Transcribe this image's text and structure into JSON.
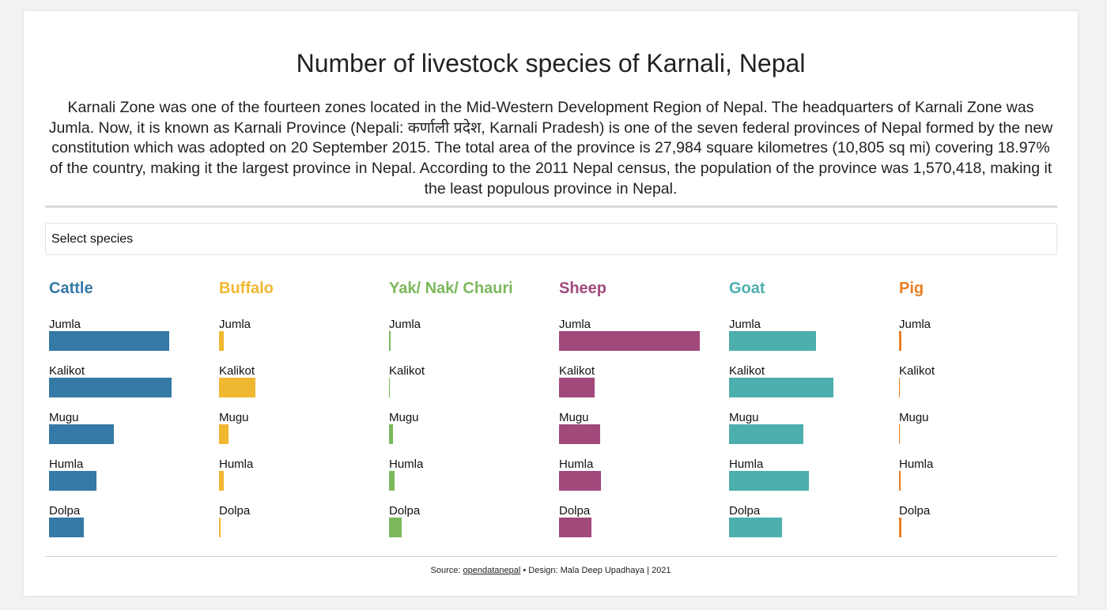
{
  "header": {
    "title": "Number of livestock species of Karnali, Nepal",
    "description": "Karnali Zone was one of the fourteen zones located in the Mid-Western Development Region of Nepal. The headquarters of Karnali Zone was Jumla. Now, it is known as Karnali Province (Nepali: कर्णाली प्रदेश, Karnali Pradesh) is one of the seven federal provinces of Nepal formed by the new constitution which was adopted on 20 September 2015. The total area of the province is 27,984 square kilometres (10,805 sq mi) covering 18.97% of the country, making it the largest province in Nepal. According to the 2011 Nepal census, the population of the province was 1,570,418, making it the least populous province in Nepal."
  },
  "filter": {
    "label": "Select species"
  },
  "chart_data": [
    {
      "type": "bar",
      "title": "Cattle",
      "color": "#3579a6",
      "categories": [
        "Jumla",
        "Kalikot",
        "Mugu",
        "Humla",
        "Dolpa"
      ],
      "values": [
        152,
        155,
        82,
        60,
        44
      ],
      "xlim": [
        0,
        180
      ]
    },
    {
      "type": "bar",
      "title": "Buffalo",
      "color": "#f0b731",
      "categories": [
        "Jumla",
        "Kalikot",
        "Mugu",
        "Humla",
        "Dolpa"
      ],
      "values": [
        6,
        46,
        12,
        6,
        2
      ],
      "xlim": [
        0,
        180
      ]
    },
    {
      "type": "bar",
      "title": "Yak/ Nak/ Chauri",
      "color": "#7cb85c",
      "categories": [
        "Jumla",
        "Kalikot",
        "Mugu",
        "Humla",
        "Dolpa"
      ],
      "values": [
        2,
        1,
        5,
        7,
        16
      ],
      "xlim": [
        0,
        180
      ]
    },
    {
      "type": "bar",
      "title": "Sheep",
      "color": "#a2497c",
      "categories": [
        "Jumla",
        "Kalikot",
        "Mugu",
        "Humla",
        "Dolpa"
      ],
      "values": [
        178,
        45,
        52,
        53,
        41
      ],
      "xlim": [
        0,
        180
      ]
    },
    {
      "type": "bar",
      "title": "Goat",
      "color": "#4cafae",
      "categories": [
        "Jumla",
        "Kalikot",
        "Mugu",
        "Humla",
        "Dolpa"
      ],
      "values": [
        110,
        132,
        94,
        101,
        67
      ],
      "xlim": [
        0,
        180
      ]
    },
    {
      "type": "bar",
      "title": "Pig",
      "color": "#ea7e24",
      "categories": [
        "Jumla",
        "Kalikot",
        "Mugu",
        "Humla",
        "Dolpa"
      ],
      "values": [
        3,
        1,
        1,
        2,
        3
      ],
      "xlim": [
        0,
        180
      ]
    }
  ],
  "footer": {
    "source_prefix": "Source: ",
    "source_link": "opendatanepal",
    "design": " • Design: Mala Deep Upadhaya | 2021"
  }
}
